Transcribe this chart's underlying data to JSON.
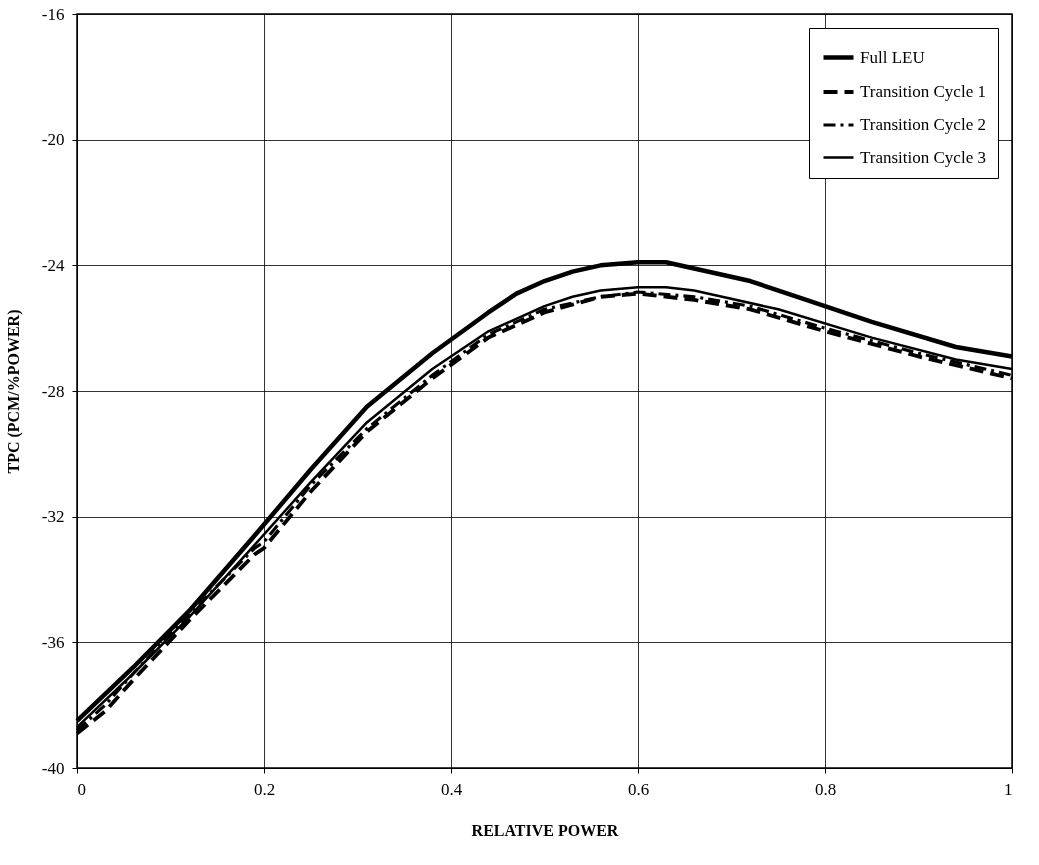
{
  "chart_data": {
    "type": "line",
    "xlabel": "RELATIVE POWER",
    "ylabel": "TPC (PCM/%POWER)",
    "xlim": [
      0,
      1
    ],
    "xticks": [
      0,
      0.2,
      0.4,
      0.6,
      0.8,
      1
    ],
    "ylim": [
      -40,
      -16
    ],
    "yticks": [
      -40,
      -36,
      -32,
      -28,
      -24,
      -20,
      -16
    ],
    "grid": true,
    "legend": "top right",
    "marker": "none",
    "series": [
      {
        "name": "Full LEU",
        "color": "#000000",
        "line_style": "solid",
        "x": [
          0,
          0.06,
          0.12,
          0.19,
          0.25,
          0.31,
          0.38,
          0.44,
          0.47,
          0.5,
          0.53,
          0.56,
          0.6,
          0.63,
          0.66,
          0.72,
          0.78,
          0.85,
          0.94,
          1
        ],
        "values": [
          -38.5,
          -36.8,
          -35,
          -32.6,
          -30.5,
          -28.5,
          -26.8,
          -25.5,
          -24.9,
          -24.5,
          -24.2,
          -24,
          -23.9,
          -23.9,
          -24.1,
          -24.5,
          -25.1,
          -25.8,
          -26.6,
          -26.9
        ]
      },
      {
        "name": "Transition Cycle 1",
        "color": "#000000",
        "line_style": "dashed",
        "x": [
          0,
          0.03,
          0.06,
          0.12,
          0.19,
          0.2,
          0.25,
          0.31,
          0.38,
          0.44,
          0.5,
          0.56,
          0.6,
          0.66,
          0.72,
          0.8,
          0.9,
          1
        ],
        "values": [
          -38.9,
          -38.2,
          -37.2,
          -35.3,
          -33.2,
          -33,
          -31.2,
          -29.3,
          -27.6,
          -26.3,
          -25.5,
          -25,
          -24.9,
          -25.1,
          -25.4,
          -26.1,
          -26.9,
          -27.6
        ]
      },
      {
        "name": "Transition Cycle 2",
        "color": "#000000",
        "line_style": "dashdot",
        "x": [
          0,
          0.03,
          0.06,
          0.12,
          0.19,
          0.2,
          0.25,
          0.31,
          0.38,
          0.44,
          0.5,
          0.56,
          0.6,
          0.66,
          0.72,
          0.8,
          0.9,
          1
        ],
        "values": [
          -38.8,
          -38,
          -37,
          -35.1,
          -33,
          -32.8,
          -31,
          -29.2,
          -27.5,
          -26.2,
          -25.4,
          -25,
          -24.85,
          -25,
          -25.3,
          -26,
          -26.8,
          -27.5
        ]
      },
      {
        "name": "Transition Cycle 3",
        "color": "#000000",
        "line_style": "solid",
        "x": [
          0,
          0.06,
          0.12,
          0.19,
          0.25,
          0.31,
          0.38,
          0.44,
          0.5,
          0.53,
          0.56,
          0.6,
          0.63,
          0.66,
          0.69,
          0.75,
          0.85,
          0.94,
          1
        ],
        "values": [
          -38.7,
          -37,
          -35.2,
          -32.9,
          -30.9,
          -29,
          -27.3,
          -26.1,
          -25.3,
          -25,
          -24.8,
          -24.7,
          -24.7,
          -24.8,
          -25,
          -25.4,
          -26.3,
          -27,
          -27.3
        ]
      }
    ]
  }
}
